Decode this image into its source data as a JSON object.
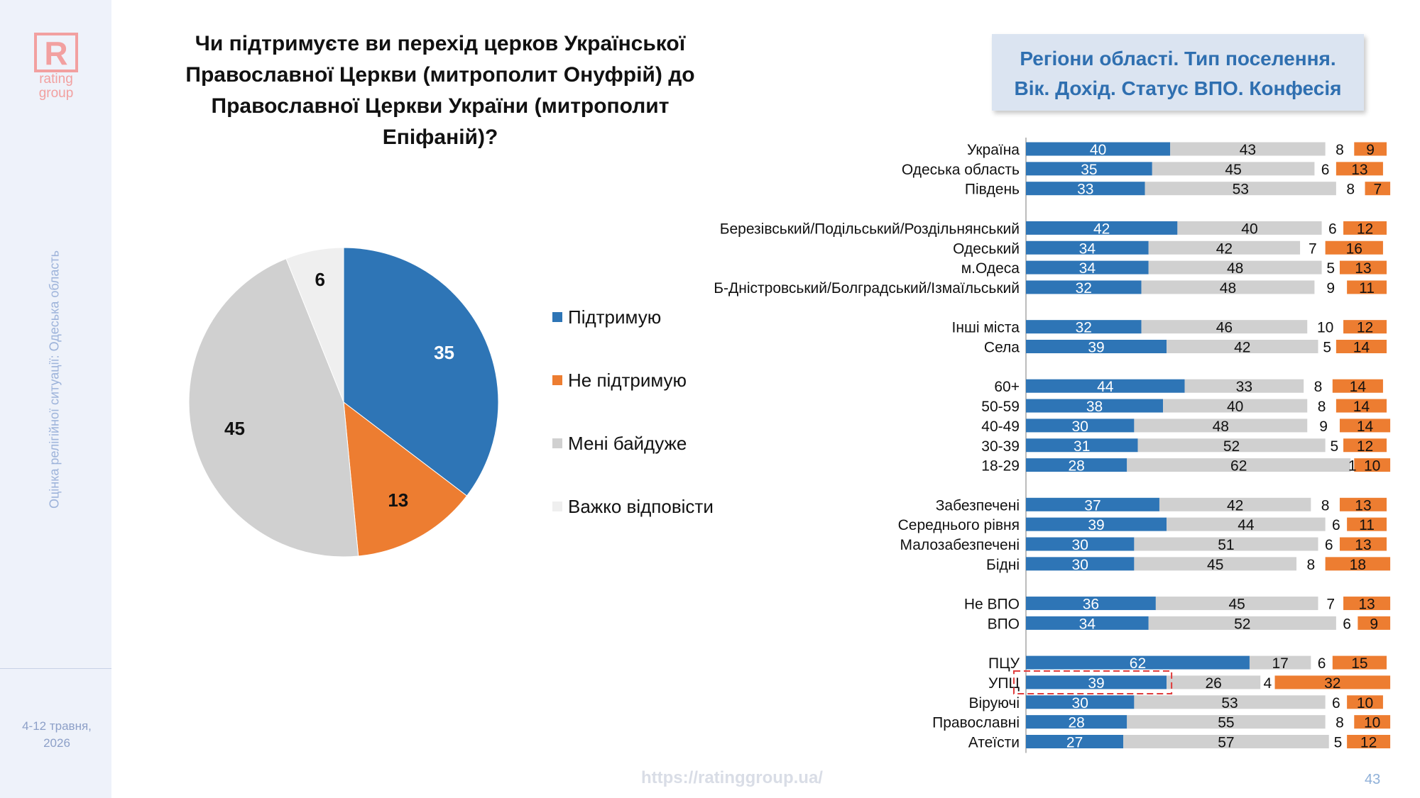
{
  "brand": {
    "logo_letter": "R",
    "logo_line1": "rating",
    "logo_line2": "group"
  },
  "sidebar": {
    "vertical_label": "Оцінка релігійної ситуації: Одеська область",
    "date_line1": "4-12 травня,",
    "date_line2": "2026"
  },
  "title": {
    "line1": "Чи підтримуєте ви перехід церков Української",
    "line2": "Православної Церкви (митрополит Онуфрій) до",
    "line3": "Православної Церкви України (митрополит Епіфаній)?"
  },
  "badge": {
    "line1": "Регіони області. Тип поселення.",
    "line2": "Вік. Дохід. Статус ВПО. Конфесія"
  },
  "footer": {
    "url": "https://ratinggroup.ua/",
    "page_number": "43"
  },
  "colors": {
    "support": "#2e75b6",
    "not_support": "#ed7d31",
    "indifferent": "#d0d0d0",
    "hard_to_say": "#efefef",
    "highlight": "#e03c3c"
  },
  "legend": [
    {
      "label": "Підтримую",
      "color": "#2e75b6"
    },
    {
      "label": "Не підтримую",
      "color": "#ed7d31"
    },
    {
      "label": "Мені байдуже",
      "color": "#d0d0d0"
    },
    {
      "label": "Важко відповісти",
      "color": "#efefef"
    }
  ],
  "chart_data": [
    {
      "type": "pie",
      "slices": [
        {
          "name": "Підтримую",
          "value": 35,
          "color": "#2e75b6"
        },
        {
          "name": "Не підтримую",
          "value": 13,
          "color": "#ed7d31"
        },
        {
          "name": "Мені байдуже",
          "value": 45,
          "color": "#d0d0d0"
        },
        {
          "name": "Важко відповісти",
          "value": 6,
          "color": "#efefef"
        }
      ]
    },
    {
      "type": "bar",
      "orientation": "horizontal",
      "stacked": true,
      "series_names": [
        "Підтримую",
        "Мені байдуже",
        "Важко відповісти",
        "Не підтримую"
      ],
      "series_colors": [
        "#2e75b6",
        "#d0d0d0",
        "#ffffff",
        "#ed7d31"
      ],
      "highlighted_category": "УПЦ",
      "groups": [
        {
          "rows": [
            {
              "label": "Україна",
              "values": [
                40,
                43,
                8,
                9
              ]
            },
            {
              "label": "Одеська область",
              "values": [
                35,
                45,
                6,
                13
              ]
            },
            {
              "label": "Південь",
              "values": [
                33,
                53,
                8,
                7
              ]
            }
          ]
        },
        {
          "rows": [
            {
              "label": "Березівський/Подільський/Роздільнянський",
              "values": [
                42,
                40,
                6,
                12
              ]
            },
            {
              "label": "Одеський",
              "values": [
                34,
                42,
                7,
                16
              ]
            },
            {
              "label": "м.Одеса",
              "values": [
                34,
                48,
                5,
                13
              ]
            },
            {
              "label": "Б-Дністровський/Болградський/Ізмаїльський",
              "values": [
                32,
                48,
                9,
                11
              ]
            }
          ]
        },
        {
          "rows": [
            {
              "label": "Інші міста",
              "values": [
                32,
                46,
                10,
                12
              ]
            },
            {
              "label": "Села",
              "values": [
                39,
                42,
                5,
                14
              ]
            }
          ]
        },
        {
          "rows": [
            {
              "label": "60+",
              "values": [
                44,
                33,
                8,
                14
              ]
            },
            {
              "label": "50-59",
              "values": [
                38,
                40,
                8,
                14
              ]
            },
            {
              "label": "40-49",
              "values": [
                30,
                48,
                9,
                14
              ]
            },
            {
              "label": "30-39",
              "values": [
                31,
                52,
                5,
                12
              ]
            },
            {
              "label": "18-29",
              "values": [
                28,
                62,
                1,
                10
              ]
            }
          ]
        },
        {
          "rows": [
            {
              "label": "Забезпечені",
              "values": [
                37,
                42,
                8,
                13
              ]
            },
            {
              "label": "Середнього рівня",
              "values": [
                39,
                44,
                6,
                11
              ]
            },
            {
              "label": "Малозабезпечені",
              "values": [
                30,
                51,
                6,
                13
              ]
            },
            {
              "label": "Бідні",
              "values": [
                30,
                45,
                8,
                18
              ]
            }
          ]
        },
        {
          "rows": [
            {
              "label": "Не ВПО",
              "values": [
                36,
                45,
                7,
                13
              ]
            },
            {
              "label": "ВПО",
              "values": [
                34,
                52,
                6,
                9
              ]
            }
          ]
        },
        {
          "rows": [
            {
              "label": "ПЦУ",
              "values": [
                62,
                17,
                6,
                15
              ]
            },
            {
              "label": "УПЦ",
              "values": [
                39,
                26,
                4,
                32
              ]
            },
            {
              "label": "Віруючі",
              "values": [
                30,
                53,
                6,
                10
              ]
            },
            {
              "label": "Православні",
              "values": [
                28,
                55,
                8,
                10
              ]
            },
            {
              "label": "Атеїсти",
              "values": [
                27,
                57,
                5,
                12
              ]
            }
          ]
        }
      ]
    }
  ]
}
